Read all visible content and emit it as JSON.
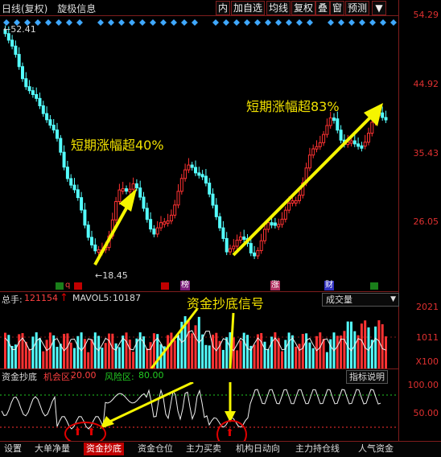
{
  "toolbar": {
    "period": "日线(复权)",
    "indicator": "旋极信息",
    "buttons": [
      "内",
      "加自选",
      "均线",
      "复权",
      "叠",
      "窗",
      "预测"
    ],
    "menu_glyph": "▼"
  },
  "price_axis": {
    "labels": [
      "54.29",
      "44.92",
      "35.43",
      "26.05"
    ]
  },
  "price_marks": {
    "high": "52.41",
    "low": "18.45"
  },
  "annotations": {
    "first": "短期涨幅超40%",
    "second": "短期涨幅超83%",
    "signal": "资金抄底信号"
  },
  "event_tags": {
    "bang": "榜",
    "zhang": "涨",
    "cai": "财"
  },
  "volume": {
    "label": "总手:",
    "value": "121154",
    "ma_label": "MAVOL5:",
    "ma_value": "10187",
    "select": "成交量",
    "axis": [
      "2021",
      "1011",
      "X100"
    ]
  },
  "indicator": {
    "name": "资金抄底",
    "opp_label": "机会区:",
    "opp_value": "20.00",
    "risk_label": "风险区:",
    "risk_value": "80.00",
    "help_button": "指标说明",
    "axis": [
      "100.00",
      "50.00"
    ]
  },
  "tabs": [
    "设置",
    "大单净量",
    "资金抄底",
    "资金仓位",
    "主力买卖",
    "机构日动向",
    "主力持仓线",
    "人气资金"
  ],
  "active_tab": 2,
  "colors": {
    "up": "#ff3232",
    "down": "#54ffff",
    "arrow": "#f5f500",
    "grid": "#7f1d1d",
    "axis_text": "#e03030"
  }
}
